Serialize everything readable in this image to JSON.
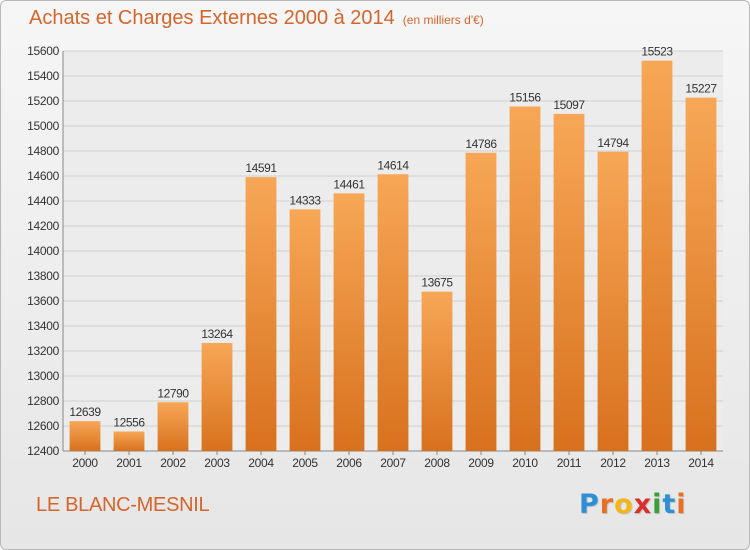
{
  "title": "Achats et Charges Externes 2000 à 2014",
  "unit_note": "(en milliers d'€)",
  "location": "LE BLANC-MESNIL",
  "logo": {
    "letters": [
      "P",
      "r",
      "o",
      "x",
      "i",
      "t",
      "i"
    ],
    "colors": [
      "#2e8fd6",
      "#e8701f",
      "#f2b619",
      "#d9302b",
      "#3a9f3a",
      "#2e8fd6",
      "#e8701f"
    ]
  },
  "colors": {
    "bar_light": "#f7a756",
    "bar_dark": "#d8711e",
    "title": "#d5652b",
    "grid": "#cfcfcf"
  },
  "chart_data": {
    "type": "bar",
    "categories": [
      "2000",
      "2001",
      "2002",
      "2003",
      "2004",
      "2005",
      "2006",
      "2007",
      "2008",
      "2009",
      "2010",
      "2011",
      "2012",
      "2013",
      "2014"
    ],
    "values": [
      12639,
      12556,
      12790,
      13264,
      14591,
      14333,
      14461,
      14614,
      13675,
      14786,
      15156,
      15097,
      14794,
      15523,
      15227
    ],
    "ylim": [
      12400,
      15600
    ],
    "yticks": [
      12400,
      12600,
      12800,
      13000,
      13200,
      13400,
      13600,
      13800,
      14000,
      14200,
      14400,
      14600,
      14800,
      15000,
      15200,
      15400,
      15600
    ],
    "grid": true,
    "data_labels": true
  }
}
